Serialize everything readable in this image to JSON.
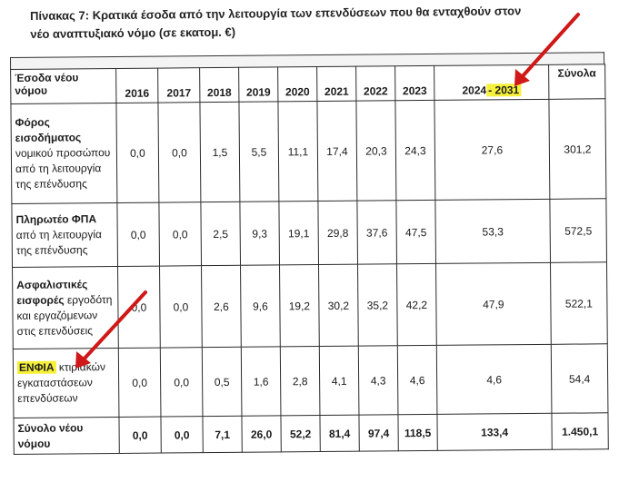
{
  "caption": {
    "line1": "Πίνακας 7: Κρατικά έσοδα από την λειτουργία των επενδύσεων που θα ενταχθούν στον",
    "line2": "νέο αναπτυξιακό νόμο (σε εκατομ. €)"
  },
  "table": {
    "header": {
      "first": "Έσοδα νέου νόμου",
      "years": [
        "2016",
        "2017",
        "2018",
        "2019",
        "2020",
        "2021",
        "2022",
        "2023"
      ],
      "range_start": "2024",
      "range_end": "- 2031",
      "total": "Σύνολα"
    },
    "rows": [
      {
        "label_bold": "Φόρος εισοδήματος",
        "label_rest": "νομικού προσώπου από τη λειτουργία της επένδυσης",
        "values": [
          "0,0",
          "0,0",
          "1,5",
          "5,5",
          "11,1",
          "17,4",
          "20,3",
          "24,3",
          "27,6",
          "301,2"
        ]
      },
      {
        "label_bold": "Πληρωτέο ΦΠΑ",
        "label_rest": "από τη λειτουργία της επένδυσης",
        "values": [
          "0,0",
          "0,0",
          "2,5",
          "9,3",
          "19,1",
          "29,8",
          "37,6",
          "47,5",
          "53,3",
          "572,5"
        ]
      },
      {
        "label_bold": "Ασφαλιστικές εισφορές",
        "label_rest": "εργοδότη και εργαζόμενων στις επενδύσεις",
        "values": [
          "0,0",
          "0,0",
          "2,6",
          "9,6",
          "19,2",
          "30,2",
          "35,2",
          "42,2",
          "47,9",
          "522,1"
        ]
      },
      {
        "label_bold": "ΕΝΦΙΑ",
        "label_rest": "κτιριακών εγκαταστάσεων επενδύσεων",
        "values": [
          "0,0",
          "0,0",
          "0,5",
          "1,6",
          "2,8",
          "4,1",
          "4,3",
          "4,6",
          "4,6",
          "54,4"
        ]
      }
    ],
    "total_row": {
      "label": "Σύνολο νέου νόμου",
      "values": [
        "0,0",
        "0,0",
        "7,1",
        "26,0",
        "52,2",
        "81,4",
        "97,4",
        "118,5",
        "133,4",
        "1.450,1"
      ]
    }
  },
  "colors": {
    "highlight": "#f6f03a",
    "arrow": "#d01818",
    "ink": "#1b1b1b"
  },
  "annotations": [
    "red-arrow-to-2031",
    "red-arrow-to-enfia"
  ]
}
